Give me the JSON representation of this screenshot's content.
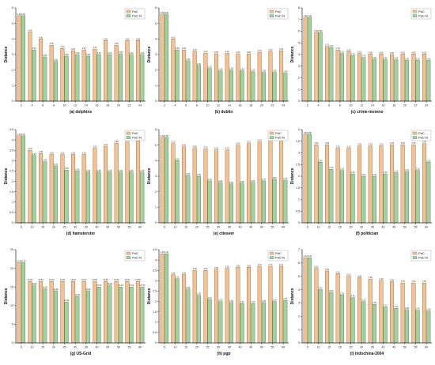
{
  "colors": {
    "series1": "#F7C08C",
    "series2": "#9CD49A",
    "edge": "#555555",
    "axis": "#222222"
  },
  "chart_data": [
    {
      "type": "bar",
      "caption": "(a) dolphins",
      "ylabel": "Distance",
      "categories": [
        "2",
        "4",
        "6",
        "8",
        "10",
        "12",
        "14",
        "16",
        "18",
        "20",
        "22",
        "24"
      ],
      "ylim": [
        0,
        6
      ],
      "yticks": [
        0,
        1,
        2,
        3,
        4,
        5,
        6
      ],
      "legend": "top-right",
      "series": [
        {
          "name": "PaC",
          "values": [
            5.5,
            4.45,
            4.0,
            3.6,
            3.4,
            3.25,
            3.3,
            3.35,
            3.9,
            3.6,
            3.9,
            3.9
          ]
        },
        {
          "name": "PaC-N",
          "values": [
            5.5,
            3.3,
            2.85,
            2.55,
            2.9,
            3.0,
            2.9,
            3.0,
            3.0,
            3.05,
            3.0,
            3.0
          ]
        }
      ]
    },
    {
      "type": "bar",
      "caption": "(b) dublin",
      "ylabel": "Distance",
      "categories": [
        "2",
        "4",
        "6",
        "8",
        "10",
        "12",
        "14",
        "16",
        "18",
        "20",
        "22",
        "24"
      ],
      "ylim": [
        0,
        6
      ],
      "yticks": [
        0,
        1,
        2,
        3,
        4,
        5,
        6
      ],
      "legend": "top-right",
      "series": [
        {
          "name": "PaC",
          "values": [
            5.6,
            4.0,
            3.3,
            3.2,
            3.1,
            3.05,
            3.1,
            3.05,
            3.05,
            3.15,
            3.2,
            3.25
          ]
        },
        {
          "name": "PaC-N",
          "values": [
            5.6,
            3.3,
            2.6,
            2.3,
            2.1,
            1.95,
            2.0,
            1.95,
            1.9,
            1.85,
            1.85,
            1.8
          ]
        }
      ]
    },
    {
      "type": "bar",
      "caption": "(c) crime-moreno",
      "ylabel": "Distance",
      "categories": [
        "2",
        "4",
        "6",
        "8",
        "10",
        "12",
        "14",
        "16",
        "18",
        "20",
        "22",
        "24"
      ],
      "ylim": [
        0,
        8
      ],
      "yticks": [
        0,
        1,
        2,
        3,
        4,
        5,
        6,
        7,
        8
      ],
      "legend": "top-right",
      "series": [
        {
          "name": "PaC",
          "values": [
            7.2,
            5.9,
            4.7,
            4.4,
            4.25,
            4.1,
            4.05,
            4.05,
            4.0,
            4.05,
            4.05,
            4.05
          ]
        },
        {
          "name": "PaC-N",
          "values": [
            7.2,
            5.9,
            4.6,
            4.1,
            3.9,
            3.75,
            3.6,
            3.55,
            3.55,
            3.5,
            3.5,
            3.5
          ]
        }
      ]
    },
    {
      "type": "bar",
      "caption": "(d) hamsterster",
      "ylabel": "Distance",
      "categories": [
        "5",
        "10",
        "15",
        "20",
        "25",
        "30",
        "35",
        "40",
        "45",
        "50",
        "55",
        "60"
      ],
      "ylim": [
        0,
        4.5
      ],
      "yticks": [
        0,
        0.5,
        1,
        1.5,
        2,
        2.5,
        3,
        3.5,
        4,
        4.5
      ],
      "legend": "top-right",
      "series": [
        {
          "name": "PaC",
          "values": [
            4.2,
            3.5,
            3.35,
            3.3,
            3.3,
            3.3,
            3.3,
            3.6,
            3.7,
            3.85,
            3.9,
            3.95
          ]
        },
        {
          "name": "PaC-N",
          "values": [
            4.2,
            3.25,
            2.95,
            2.75,
            2.55,
            2.5,
            2.45,
            2.45,
            2.45,
            2.45,
            2.45,
            2.45
          ]
        }
      ]
    },
    {
      "type": "bar",
      "caption": "(e) citeseer",
      "ylabel": "Distance",
      "categories": [
        "5",
        "10",
        "15",
        "20",
        "25",
        "30",
        "35",
        "40",
        "45",
        "50",
        "55",
        "60"
      ],
      "ylim": [
        0,
        6
      ],
      "yticks": [
        0,
        1,
        2,
        3,
        4,
        5,
        6
      ],
      "legend": "top-right",
      "series": [
        {
          "name": "PaC",
          "values": [
            5.5,
            5.1,
            4.9,
            4.8,
            4.75,
            4.7,
            4.7,
            5.0,
            5.1,
            5.2,
            5.4,
            5.6
          ]
        },
        {
          "name": "PaC-N",
          "values": [
            5.5,
            4.0,
            3.05,
            3.0,
            2.7,
            2.6,
            2.5,
            2.55,
            2.6,
            2.7,
            2.8,
            2.75
          ]
        }
      ]
    },
    {
      "type": "bar",
      "caption": "(f) politician",
      "ylabel": "Distance",
      "categories": [
        "5",
        "10",
        "15",
        "20",
        "25",
        "30",
        "35",
        "40",
        "45",
        "50",
        "55",
        "60"
      ],
      "ylim": [
        0,
        4
      ],
      "yticks": [
        0,
        0.5,
        1,
        1.5,
        2,
        2.5,
        3,
        3.5,
        4
      ],
      "legend": "top-right",
      "series": [
        {
          "name": "PaC",
          "values": [
            3.8,
            3.35,
            3.35,
            3.2,
            3.2,
            3.3,
            3.3,
            3.3,
            3.35,
            3.35,
            3.35,
            3.4
          ]
        },
        {
          "name": "PaC-N",
          "values": [
            3.8,
            2.6,
            2.3,
            2.25,
            2.1,
            2.0,
            2.0,
            2.1,
            2.15,
            2.2,
            2.25,
            2.6
          ]
        }
      ]
    },
    {
      "type": "bar",
      "caption": "(g) US-Grid",
      "ylabel": "Distance",
      "categories": [
        "5",
        "10",
        "15",
        "20",
        "25",
        "30",
        "35",
        "40",
        "45",
        "50",
        "55",
        "60"
      ],
      "ylim": [
        0,
        25
      ],
      "yticks": [
        0,
        5,
        10,
        15,
        20,
        25
      ],
      "legend": "top-right",
      "series": [
        {
          "name": "PaC",
          "values": [
            21.5,
            16.5,
            16.5,
            16.5,
            16.5,
            16.5,
            16.5,
            16.5,
            16.5,
            16.5,
            16.5,
            16.5
          ]
        },
        {
          "name": "PaC-N",
          "values": [
            21.5,
            15.5,
            14.5,
            14.0,
            11.0,
            12.5,
            14.0,
            15.0,
            15.5,
            15.0,
            15.0,
            15.0
          ]
        }
      ]
    },
    {
      "type": "bar",
      "caption": "(h) pgp",
      "ylabel": "Distance",
      "categories": [
        "5",
        "10",
        "15",
        "20",
        "25",
        "30",
        "35",
        "40",
        "45",
        "50",
        "55",
        "60"
      ],
      "ylim": [
        0,
        4.5
      ],
      "yticks": [
        0,
        0.5,
        1,
        1.5,
        2,
        2.5,
        3,
        3.5,
        4,
        4.5
      ],
      "legend": "top-right",
      "series": [
        {
          "name": "PaC",
          "values": [
            4.3,
            3.3,
            3.3,
            3.5,
            3.5,
            3.55,
            3.6,
            3.65,
            3.65,
            3.7,
            3.7,
            3.7
          ]
        },
        {
          "name": "PaC-N",
          "values": [
            4.3,
            3.1,
            2.6,
            2.3,
            2.1,
            2.0,
            1.95,
            1.9,
            1.9,
            1.95,
            2.0,
            2.05
          ]
        }
      ]
    },
    {
      "type": "bar",
      "caption": "(i) indochina-2004",
      "ylabel": "Distance",
      "categories": [
        "5",
        "10",
        "15",
        "20",
        "25",
        "30",
        "35",
        "40",
        "45",
        "50",
        "55",
        "60"
      ],
      "ylim": [
        0,
        7
      ],
      "yticks": [
        0,
        1,
        2,
        3,
        4,
        5,
        6,
        7
      ],
      "legend": "top-right",
      "series": [
        {
          "name": "PaC",
          "values": [
            6.4,
            5.6,
            5.4,
            5.2,
            5.0,
            4.9,
            4.8,
            4.7,
            4.6,
            4.5,
            4.5,
            4.5
          ]
        },
        {
          "name": "PaC-N",
          "values": [
            6.4,
            4.0,
            3.8,
            3.6,
            3.4,
            3.1,
            2.9,
            2.7,
            2.6,
            2.5,
            2.45,
            2.4
          ]
        }
      ]
    }
  ]
}
